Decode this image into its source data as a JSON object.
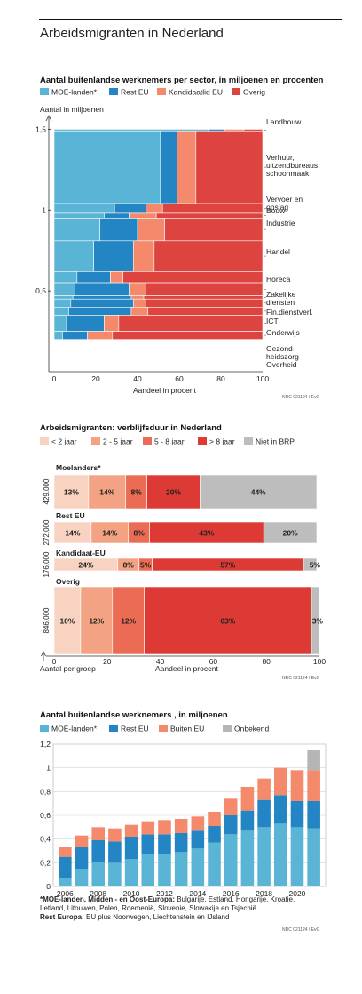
{
  "page_title": "Arbeidsmigranten in Nederland",
  "colors": {
    "moe": "#5ab4d6",
    "resteu": "#2385c4",
    "kandidaat": "#f4896b",
    "overig": "#dd4440",
    "lt2": "#f8d3c1",
    "y2_5": "#f3a384",
    "y5_8": "#ec6b54",
    "gt8": "#dd3a35",
    "nietbrp": "#bdbdbd",
    "onbekend": "#b5b5b5"
  },
  "chart_data": [
    {
      "type": "mosaic",
      "title": "Aantal buitenlandse werknemers per sector, in miljoenen en procenten",
      "legend": [
        "MOE-landen*",
        "Rest EU",
        "Kandidaatlid EU",
        "Overig"
      ],
      "ylabel": "Aantal in miljoenen",
      "xlabel": "Aandeel in procent",
      "xticks": [
        "0",
        "20",
        "40",
        "60",
        "80",
        "100"
      ],
      "yticks": [
        "0,5",
        "1",
        "1,5"
      ],
      "ylim": [
        0,
        1.53
      ],
      "xlim": [
        0,
        100
      ],
      "source": "NRC 021124 / EvG",
      "sectors": [
        {
          "name": "Landbouw",
          "size": 0.01,
          "values": [
            74,
            8,
            9,
            9
          ]
        },
        {
          "name": "Verhuur, uitzendbureaus, schoonmaak",
          "size": 0.45,
          "values": [
            51,
            8,
            9,
            32
          ]
        },
        {
          "name": "Vervoer en opslag",
          "size": 0.06,
          "values": [
            29,
            15,
            8,
            48
          ]
        },
        {
          "name": "Bouw",
          "size": 0.03,
          "values": [
            24,
            12,
            13,
            51
          ]
        },
        {
          "name": "Industrie",
          "size": 0.14,
          "values": [
            22,
            18,
            13,
            47
          ]
        },
        {
          "name": "Handel",
          "size": 0.19,
          "values": [
            19,
            19,
            10,
            52
          ]
        },
        {
          "name": "Horeca",
          "size": 0.07,
          "values": [
            11,
            16,
            6,
            67
          ]
        },
        {
          "name": "Zakelijke diensten",
          "size": 0.08,
          "values": [
            10,
            26,
            8,
            56
          ]
        },
        {
          "name": "Fin.dienstverl.",
          "size": 0.02,
          "values": [
            9,
            28,
            6,
            57
          ]
        },
        {
          "name": "ICT",
          "size": 0.05,
          "values": [
            8,
            30,
            6,
            56
          ]
        },
        {
          "name": "Onderwijs",
          "size": 0.05,
          "values": [
            7,
            30,
            8,
            55
          ]
        },
        {
          "name": "Gezond-heidszorg",
          "size": 0.1,
          "values": [
            6,
            18,
            7,
            69
          ]
        },
        {
          "name": "Overheid",
          "size": 0.05,
          "values": [
            4,
            12,
            12,
            72
          ]
        }
      ]
    },
    {
      "type": "stacked-bar",
      "title": "Arbeidsmigranten: verblijfsduur in Nederland",
      "legend": [
        "< 2 jaar",
        "2 - 5 jaar",
        "5 - 8 jaar",
        "> 8 jaar",
        "Niet in BRP"
      ],
      "xlabel": "Aandeel in procent",
      "ylabel": "Aantal per groep",
      "xticks": [
        "0",
        "20",
        "40",
        "60",
        "80",
        "100"
      ],
      "xlim": [
        0,
        100
      ],
      "source": "NRC 021124 / EvG",
      "groups": [
        {
          "name": "Moelanders*",
          "count": "429.000",
          "size": 429000,
          "values": [
            13,
            14,
            8,
            20,
            44
          ],
          "labels": [
            "13%",
            "14%",
            "8%",
            "20%",
            "44%"
          ]
        },
        {
          "name": "Rest EU",
          "count": "272.000",
          "size": 272000,
          "values": [
            14,
            14,
            8,
            43,
            20
          ],
          "labels": [
            "14%",
            "14%",
            "8%",
            "43%",
            "20%"
          ]
        },
        {
          "name": "Kandidaat-EU",
          "count": "176.000",
          "size": 176000,
          "values": [
            24,
            8,
            5,
            57,
            5
          ],
          "labels": [
            "24%",
            "8%",
            "5%",
            "57%",
            "5%"
          ]
        },
        {
          "name": "Overig",
          "count": "846.000",
          "size": 846000,
          "values": [
            10,
            12,
            12,
            63,
            3
          ],
          "labels": [
            "10%",
            "12%",
            "12%",
            "63%",
            "3%"
          ]
        }
      ]
    },
    {
      "type": "stacked-bar",
      "title": "Aantal buitenlandse werknemers , in miljoenen",
      "legend": [
        "MOE-landen*",
        "Rest EU",
        "Buiten EU",
        "Onbekend"
      ],
      "ylim": [
        0,
        1.2
      ],
      "yticks": [
        "0",
        "0,2",
        "0,4",
        "0,6",
        "0,8",
        "1",
        "1,2"
      ],
      "xticks": [
        "2006",
        "2008",
        "2010",
        "2012",
        "2014",
        "2016",
        "2018",
        "2020"
      ],
      "grid": true,
      "source": "NRC 021124 / EvG",
      "years": [
        2006,
        2007,
        2008,
        2009,
        2010,
        2011,
        2012,
        2013,
        2014,
        2015,
        2016,
        2017,
        2018,
        2019,
        2020,
        2021
      ],
      "series": [
        {
          "name": "MOE-landen*",
          "values": [
            0.07,
            0.15,
            0.21,
            0.2,
            0.23,
            0.27,
            0.27,
            0.29,
            0.32,
            0.37,
            0.44,
            0.47,
            0.5,
            0.53,
            0.5,
            0.49
          ]
        },
        {
          "name": "Rest EU",
          "values": [
            0.18,
            0.18,
            0.18,
            0.18,
            0.19,
            0.17,
            0.17,
            0.16,
            0.15,
            0.14,
            0.16,
            0.17,
            0.23,
            0.24,
            0.22,
            0.23
          ]
        },
        {
          "name": "Buiten EU",
          "values": [
            0.08,
            0.1,
            0.11,
            0.11,
            0.1,
            0.11,
            0.12,
            0.12,
            0.12,
            0.12,
            0.14,
            0.2,
            0.18,
            0.23,
            0.26,
            0.26
          ]
        },
        {
          "name": "Onbekend",
          "values": [
            0,
            0,
            0,
            0,
            0,
            0,
            0,
            0,
            0,
            0,
            0,
            0,
            0,
            0,
            0,
            0.17
          ]
        }
      ]
    }
  ],
  "footnotes": {
    "moe_label": "*MOE-landen, Midden - en Oost-Europa:",
    "moe_text": " Bulgarije, Estland, Hongarije, Kroatie,",
    "moe_text2": "Letland, Litouwen, Polen, Roemenië, Slovenie, Slowakije en Tsjechië.",
    "rest_label": "Rest Europa:",
    "rest_text": " EU plus Noorwegen, Liechtenstein en IJsland"
  }
}
